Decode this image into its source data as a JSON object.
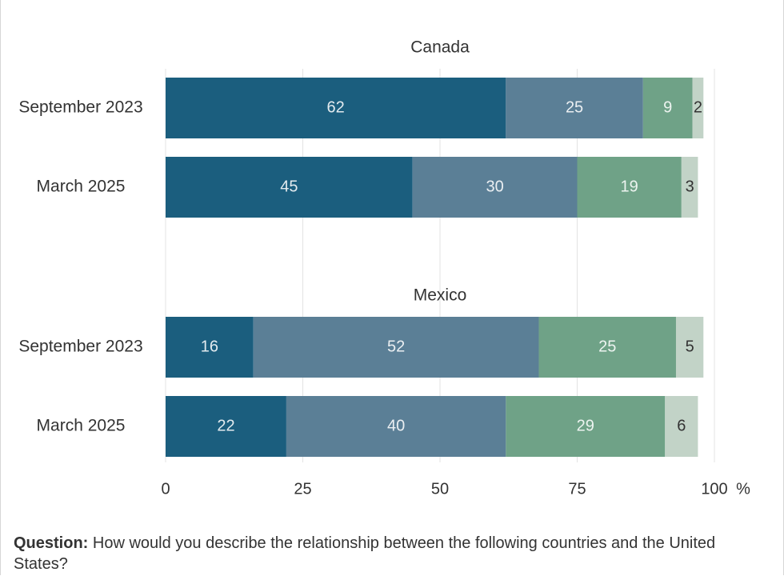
{
  "chart_data": {
    "type": "bar",
    "orientation": "horizontal",
    "stacked": true,
    "colors": [
      "#1b5e7e",
      "#5b7f96",
      "#6fa287",
      "#c2d3c7"
    ],
    "xlim": [
      0,
      100
    ],
    "x_ticks": [
      "0",
      "25",
      "50",
      "75",
      "100"
    ],
    "x_unit": "%",
    "grid": true,
    "panels": [
      {
        "title": "Canada",
        "rows": [
          {
            "label": "September 2023",
            "values": [
              62,
              25,
              9,
              2
            ]
          },
          {
            "label": "March 2025",
            "values": [
              45,
              30,
              19,
              3
            ]
          }
        ]
      },
      {
        "title": "Mexico",
        "rows": [
          {
            "label": "September 2023",
            "values": [
              16,
              52,
              25,
              5
            ]
          },
          {
            "label": "March 2025",
            "values": [
              22,
              40,
              29,
              6
            ]
          }
        ]
      }
    ]
  },
  "footer": {
    "question_label": "Question:",
    "question_text": "How would you describe the relationship between the following countries and the United States?"
  }
}
